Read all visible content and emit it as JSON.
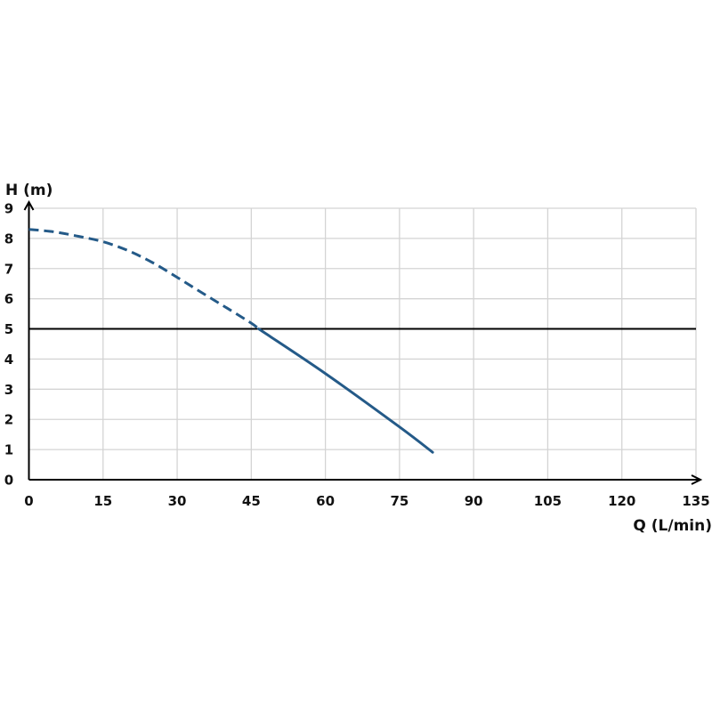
{
  "chart_data": {
    "type": "line",
    "title": "",
    "xlabel": "Q (L/min)",
    "ylabel": "H (m)",
    "xlim": [
      0,
      135
    ],
    "ylim": [
      0,
      9
    ],
    "x_ticks": [
      "0",
      "15",
      "30",
      "45",
      "60",
      "75",
      "90",
      "105",
      "120",
      "135"
    ],
    "y_ticks": [
      "0",
      "1",
      "2",
      "3",
      "4",
      "5",
      "6",
      "7",
      "8",
      "9"
    ],
    "grid": true,
    "reference_line": {
      "y": 5,
      "color": "#000000"
    },
    "series": [
      {
        "style": "dashed",
        "color": "#245a88",
        "points": [
          [
            0,
            8.3
          ],
          [
            5,
            8.22
          ],
          [
            10,
            8.07
          ],
          [
            15,
            7.89
          ],
          [
            20,
            7.6
          ],
          [
            25,
            7.2
          ],
          [
            30,
            6.71
          ],
          [
            35,
            6.2
          ],
          [
            40,
            5.7
          ],
          [
            45,
            5.19
          ],
          [
            46.5,
            5.0
          ]
        ]
      },
      {
        "style": "solid",
        "color": "#245a88",
        "points": [
          [
            46.5,
            5.0
          ],
          [
            60,
            3.52
          ],
          [
            75,
            1.75
          ],
          [
            81.7,
            0.91
          ]
        ]
      }
    ]
  }
}
